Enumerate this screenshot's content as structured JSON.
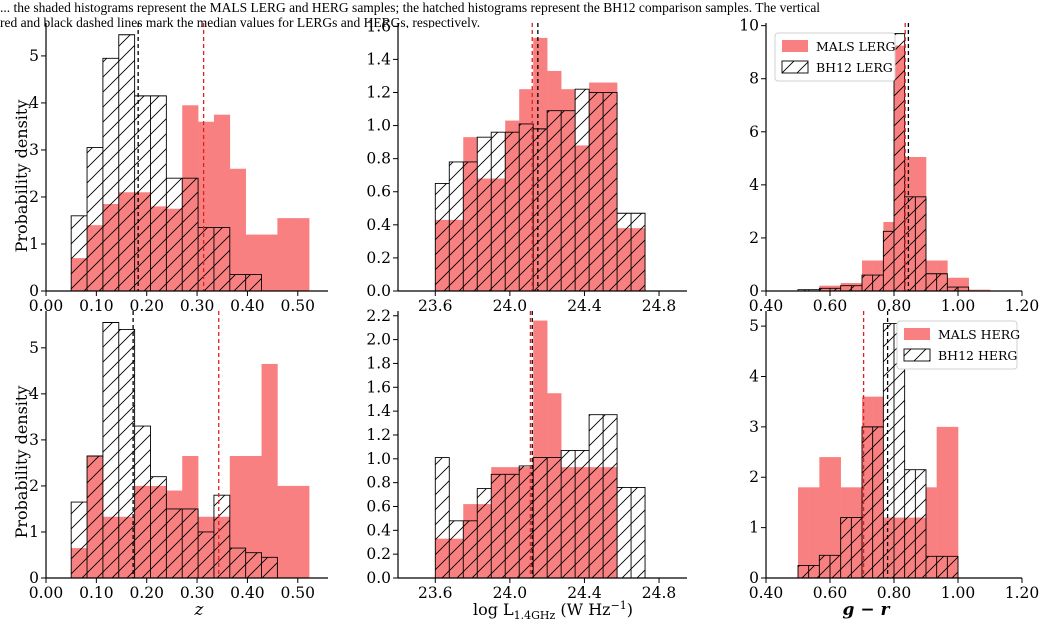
{
  "caption": {
    "line1": "... the shaded histograms represent the MALS LERG and HERG samples; the hatched histograms represent the BH12 comparison samples. The vertical",
    "line2": "red and black dashed lines mark the median values for LERGs and HERGs, respectively."
  },
  "colors": {
    "mals_fill": "#f98080",
    "bh12_edge": "#000000",
    "mals_median": "#e02020",
    "bh12_median": "#000000"
  },
  "shared_ylabel": "Probability density",
  "xlabels": {
    "z": "z",
    "lum": "log L_1.4GHz (W Hz^-1)",
    "color": "g − r"
  },
  "xlabel_parts": {
    "log": "log  L",
    "sub": "1.4GHz",
    "unit_open": " (W Hz",
    "sup": "−1",
    "unit_close": ")",
    "g": "g",
    "minus": " − ",
    "r": "r"
  },
  "chart_data": [
    {
      "type": "histogram",
      "id": "z-lerg",
      "x_label": "z",
      "y_label": "Probability density",
      "xlim": [
        0.0,
        0.56
      ],
      "ylim": [
        0,
        5.7
      ],
      "xticks": [
        0.0,
        0.1,
        0.2,
        0.3,
        0.4,
        0.5
      ],
      "xtick_labels": [
        "0.00",
        "0.10",
        "0.20",
        "0.30",
        "0.40",
        "0.50"
      ],
      "yticks": [
        0,
        1,
        2,
        3,
        4,
        5
      ],
      "ytick_labels": [
        "0",
        "1",
        "2",
        "3",
        "4",
        "5"
      ],
      "bin_edges": [
        0.05,
        0.0815,
        0.113,
        0.1445,
        0.176,
        0.2075,
        0.239,
        0.2705,
        0.302,
        0.3335,
        0.365,
        0.3965,
        0.428,
        0.4595,
        0.491,
        0.5225
      ],
      "series": [
        {
          "name": "MALS LERG",
          "style": "filled",
          "values": [
            0.7,
            1.4,
            1.85,
            2.1,
            2.1,
            1.8,
            1.75,
            3.95,
            3.6,
            3.75,
            2.6,
            1.2,
            1.2,
            1.55,
            1.55
          ]
        },
        {
          "name": "BH12 LERG",
          "style": "hatched",
          "values": [
            1.6,
            3.05,
            4.95,
            5.45,
            4.15,
            4.15,
            2.4,
            2.4,
            1.35,
            1.35,
            0.35,
            0.35,
            0.0,
            0.0,
            0.0
          ]
        }
      ],
      "medians": {
        "MALS LERG": 0.313,
        "BH12 LERG": 0.183
      }
    },
    {
      "type": "histogram",
      "id": "lum-lerg",
      "x_label": "log L_1.4GHz (W Hz^-1)",
      "y_label": "",
      "xlim": [
        23.4,
        24.95
      ],
      "ylim": [
        0,
        1.62
      ],
      "xticks": [
        23.6,
        24.0,
        24.4,
        24.8
      ],
      "xtick_labels": [
        "23.6",
        "24.0",
        "24.4",
        "24.8"
      ],
      "yticks": [
        0.0,
        0.2,
        0.4,
        0.6,
        0.8,
        1.0,
        1.2,
        1.4,
        1.6
      ],
      "ytick_labels": [
        "0.0",
        "0.2",
        "0.4",
        "0.6",
        "0.8",
        "1.0",
        "1.2",
        "1.4",
        "1.6"
      ],
      "bin_edges": [
        23.6,
        23.675,
        23.75,
        23.825,
        23.9,
        23.975,
        24.05,
        24.125,
        24.2,
        24.275,
        24.35,
        24.425,
        24.5,
        24.575,
        24.65,
        24.725
      ],
      "series": [
        {
          "name": "MALS LERG",
          "style": "filled",
          "values": [
            0.43,
            0.43,
            0.93,
            0.68,
            0.68,
            1.03,
            1.22,
            1.53,
            1.33,
            1.22,
            0.88,
            1.26,
            1.26,
            0.38,
            0.38
          ]
        },
        {
          "name": "BH12 LERG",
          "style": "hatched",
          "values": [
            0.65,
            0.78,
            0.78,
            0.93,
            0.96,
            0.96,
            1.01,
            0.98,
            1.09,
            1.09,
            1.22,
            1.2,
            1.2,
            0.47,
            0.47
          ]
        }
      ],
      "medians": {
        "MALS LERG": 24.12,
        "BH12 LERG": 24.15
      }
    },
    {
      "type": "histogram",
      "id": "color-lerg",
      "x_label": "g − r",
      "y_label": "",
      "xlim": [
        0.4,
        1.2
      ],
      "ylim": [
        0,
        10.1
      ],
      "xticks": [
        0.4,
        0.6,
        0.8,
        1.0,
        1.2
      ],
      "xtick_labels": [
        "0.40",
        "0.60",
        "0.80",
        "1.00",
        "1.20"
      ],
      "yticks": [
        0,
        2,
        4,
        6,
        8,
        10
      ],
      "ytick_labels": [
        "0",
        "2",
        "4",
        "6",
        "8",
        "10"
      ],
      "bin_edges": [
        0.5,
        0.5333,
        0.5667,
        0.6,
        0.6333,
        0.6667,
        0.7,
        0.7333,
        0.7667,
        0.8,
        0.8333,
        0.8667,
        0.9,
        0.9333,
        0.9667,
        1.0,
        1.0333,
        1.0667,
        1.1
      ],
      "series": [
        {
          "name": "MALS LERG",
          "style": "filled",
          "values": [
            0.0,
            0.0,
            0.2,
            0.2,
            0.3,
            0.3,
            1.15,
            1.15,
            2.6,
            9.25,
            5.05,
            5.05,
            1.15,
            1.15,
            0.5,
            0.5,
            0.05,
            0.05
          ]
        },
        {
          "name": "BH12 LERG",
          "style": "hatched",
          "values": [
            0.05,
            0.05,
            0.1,
            0.1,
            0.2,
            0.2,
            0.6,
            0.6,
            2.25,
            9.7,
            3.55,
            3.55,
            0.65,
            0.65,
            0.15,
            0.15,
            0.0,
            0.0
          ]
        }
      ],
      "medians": {
        "MALS LERG": 0.835,
        "BH12 LERG": 0.845
      },
      "legend": {
        "placement": "upper-left",
        "entries": [
          "MALS LERG",
          "BH12 LERG"
        ]
      }
    },
    {
      "type": "histogram",
      "id": "z-herg",
      "x_label": "z",
      "y_label": "Probability density",
      "xlim": [
        0.0,
        0.56
      ],
      "ylim": [
        0,
        5.8
      ],
      "xticks": [
        0.0,
        0.1,
        0.2,
        0.3,
        0.4,
        0.5
      ],
      "xtick_labels": [
        "0.00",
        "0.10",
        "0.20",
        "0.30",
        "0.40",
        "0.50"
      ],
      "yticks": [
        0,
        1,
        2,
        3,
        4,
        5
      ],
      "ytick_labels": [
        "0",
        "1",
        "2",
        "3",
        "4",
        "5"
      ],
      "bin_edges": [
        0.05,
        0.0815,
        0.113,
        0.1445,
        0.176,
        0.2075,
        0.239,
        0.2705,
        0.302,
        0.3335,
        0.365,
        0.3965,
        0.428,
        0.4595,
        0.491,
        0.5225
      ],
      "series": [
        {
          "name": "MALS HERG",
          "style": "filled",
          "values": [
            0.65,
            2.65,
            1.33,
            1.33,
            2.0,
            2.0,
            1.9,
            2.65,
            1.33,
            1.33,
            2.65,
            2.65,
            4.65,
            2.0,
            2.0
          ]
        },
        {
          "name": "BH12 HERG",
          "style": "hatched",
          "values": [
            1.65,
            2.65,
            5.55,
            5.4,
            3.3,
            2.2,
            1.5,
            1.5,
            1.0,
            1.8,
            0.65,
            0.55,
            0.45,
            0.0,
            0.0
          ]
        }
      ],
      "medians": {
        "MALS HERG": 0.343,
        "BH12 HERG": 0.173
      }
    },
    {
      "type": "histogram",
      "id": "lum-herg",
      "x_label": "log L_1.4GHz (W Hz^-1)",
      "y_label": "",
      "xlim": [
        23.4,
        24.95
      ],
      "ylim": [
        0,
        2.24
      ],
      "xticks": [
        23.6,
        24.0,
        24.4,
        24.8
      ],
      "xtick_labels": [
        "23.6",
        "24.0",
        "24.4",
        "24.8"
      ],
      "yticks": [
        0.0,
        0.2,
        0.4,
        0.6,
        0.8,
        1.0,
        1.2,
        1.4,
        1.6,
        1.8,
        2.0,
        2.2
      ],
      "ytick_labels": [
        "0.0",
        "0.2",
        "0.4",
        "0.6",
        "0.8",
        "1.0",
        "1.2",
        "1.4",
        "1.6",
        "1.8",
        "2.0",
        "2.2"
      ],
      "bin_edges": [
        23.6,
        23.675,
        23.75,
        23.825,
        23.9,
        23.975,
        24.05,
        24.125,
        24.2,
        24.275,
        24.35,
        24.425,
        24.5,
        24.575,
        24.65,
        24.725
      ],
      "series": [
        {
          "name": "MALS HERG",
          "style": "filled",
          "values": [
            0.33,
            0.33,
            0.62,
            0.62,
            0.93,
            0.93,
            0.93,
            2.16,
            1.55,
            0.93,
            0.93,
            0.93,
            0.93,
            0.0,
            0.0
          ]
        },
        {
          "name": "BH12 HERG",
          "style": "hatched",
          "values": [
            1.01,
            0.48,
            0.48,
            0.75,
            0.87,
            0.87,
            0.94,
            1.01,
            1.01,
            1.07,
            1.07,
            1.37,
            1.37,
            0.76,
            0.76
          ]
        }
      ],
      "medians": {
        "MALS HERG": 24.11,
        "BH12 HERG": 24.12
      }
    },
    {
      "type": "histogram",
      "id": "color-herg",
      "x_label": "g − r",
      "y_label": "",
      "xlim": [
        0.4,
        1.2
      ],
      "ylim": [
        0,
        5.3
      ],
      "xticks": [
        0.4,
        0.6,
        0.8,
        1.0,
        1.2
      ],
      "xtick_labels": [
        "0.40",
        "0.60",
        "0.80",
        "1.00",
        "1.20"
      ],
      "yticks": [
        0,
        1,
        2,
        3,
        4,
        5
      ],
      "ytick_labels": [
        "0",
        "1",
        "2",
        "3",
        "4",
        "5"
      ],
      "bin_edges": [
        0.5,
        0.5333,
        0.5667,
        0.6,
        0.6333,
        0.6667,
        0.7,
        0.7333,
        0.7667,
        0.8,
        0.8333,
        0.8667,
        0.9,
        0.9333,
        0.9667,
        1.0,
        1.0333,
        1.0667,
        1.1
      ],
      "series": [
        {
          "name": "MALS HERG",
          "style": "filled",
          "values": [
            1.8,
            1.8,
            2.4,
            2.4,
            1.8,
            1.8,
            3.6,
            3.6,
            1.2,
            1.2,
            1.2,
            1.2,
            1.8,
            3.0,
            3.0,
            0.0,
            0.0,
            0.0
          ]
        },
        {
          "name": "BH12 HERG",
          "style": "hatched",
          "values": [
            0.25,
            0.25,
            0.45,
            0.45,
            1.2,
            1.2,
            3.0,
            3.0,
            5.05,
            5.05,
            2.15,
            2.15,
            0.43,
            0.43,
            0.43,
            0.0,
            0.0,
            0.0
          ]
        }
      ],
      "medians": {
        "MALS HERG": 0.705,
        "BH12 HERG": 0.78
      },
      "legend": {
        "placement": "upper-right",
        "entries": [
          "MALS HERG",
          "BH12 HERG"
        ]
      }
    }
  ]
}
